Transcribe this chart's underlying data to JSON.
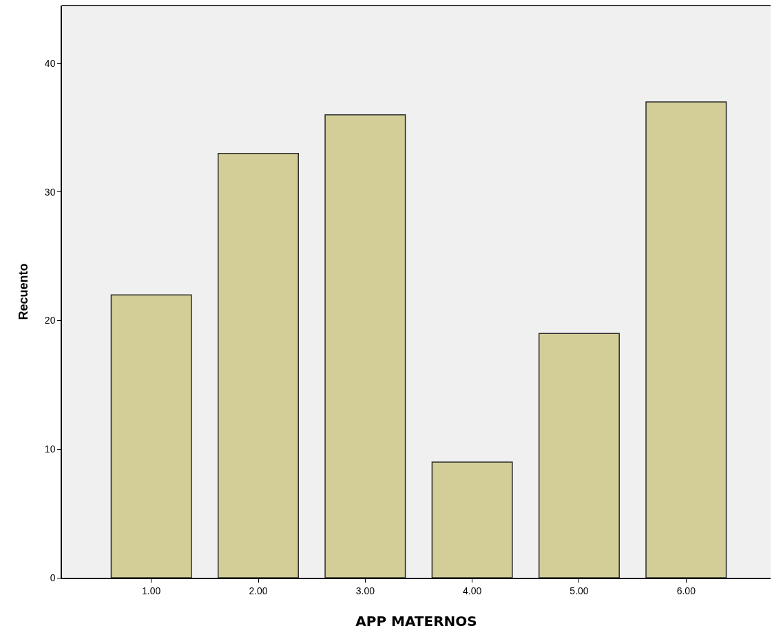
{
  "chart_data": {
    "type": "bar",
    "xlabel": "APP MATERNOS",
    "ylabel": "Recuento",
    "categories": [
      "1.00",
      "2.00",
      "3.00",
      "4.00",
      "5.00",
      "6.00"
    ],
    "values": [
      22,
      33,
      36,
      9,
      19,
      37
    ],
    "color": "#d3ce97",
    "ylim": [
      0,
      44.5
    ],
    "yticks": [
      0,
      10,
      20,
      30,
      40
    ],
    "grid": false
  }
}
